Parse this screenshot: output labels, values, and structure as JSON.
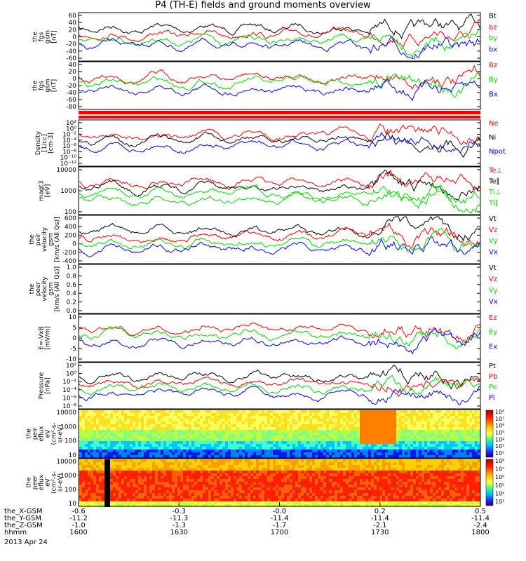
{
  "title": "P4 (TH-E) fields and ground moments overview",
  "date_label": "2013 Apr 24",
  "colors": {
    "black": "#000000",
    "red": "#ff0000",
    "green": "#00dd00",
    "blue": "#0000ff"
  },
  "chart_data": [
    {
      "type": "line",
      "ylabel": [
        "the",
        "fgs",
        "gsm",
        "[nT]"
      ],
      "yticks": [
        "60",
        "40",
        "20",
        "0",
        "-20",
        "-40",
        "-60"
      ],
      "ylim": [
        -60,
        60
      ],
      "legend": [
        {
          "label": "Bt",
          "color": "#000000"
        },
        {
          "label": "bz",
          "color": "#ff0000"
        },
        {
          "label": "by",
          "color": "#00dd00"
        },
        {
          "label": "bx",
          "color": "#0000ff"
        }
      ]
    },
    {
      "type": "line",
      "ylabel": [
        "the",
        "fgs",
        "gsm",
        "[nT]"
      ],
      "yticks": [
        "40",
        "20",
        "0",
        "-20",
        "-40",
        "-60",
        "-80"
      ],
      "ylim": [
        -90,
        45
      ],
      "legend": [
        {
          "label": "Bz",
          "color": "#ff0000"
        },
        {
          "label": "By",
          "color": "#00dd00"
        },
        {
          "label": "Bx",
          "color": "#0000ff"
        }
      ]
    },
    {
      "type": "line",
      "ylabel": [
        "Density",
        "[1/cc]",
        "[cm-3]"
      ],
      "yticks": [
        "10²",
        "10⁰",
        "10⁻²",
        "10⁻⁴",
        "10⁻⁶",
        "10⁻⁸",
        "10⁻¹⁰",
        "10⁻¹²"
      ],
      "log": true,
      "legend": [
        {
          "label": "Ne",
          "color": "#ff0000"
        },
        {
          "label": "Ni",
          "color": "#000000"
        },
        {
          "label": "Npot",
          "color": "#0000ff"
        }
      ]
    },
    {
      "type": "line",
      "ylabel": [
        "magt3",
        "[eV]"
      ],
      "yticks": [
        "10000",
        "1000",
        "100"
      ],
      "log": true,
      "legend": [
        {
          "label": "Te⊥",
          "color": "#ff0000"
        },
        {
          "label": "Te∥",
          "color": "#000000"
        },
        {
          "label": "Ti⊥",
          "color": "#00dd00"
        },
        {
          "label": "Ti∥",
          "color": "#00dd00"
        }
      ]
    },
    {
      "type": "line",
      "ylabel": [
        "the",
        "peir",
        "velocity",
        "gsm",
        "[km/s (All Qs)]"
      ],
      "yticks": [
        "600",
        "400",
        "200",
        "0",
        "-200",
        "-400"
      ],
      "ylim": [
        -450,
        620
      ],
      "legend": [
        {
          "label": "Vt",
          "color": "#000000"
        },
        {
          "label": "Vz",
          "color": "#ff0000"
        },
        {
          "label": "Vy",
          "color": "#00dd00"
        },
        {
          "label": "Vx",
          "color": "#0000ff"
        }
      ]
    },
    {
      "type": "line",
      "ylabel": [
        "the",
        "peer",
        "velocity",
        "gsm",
        "[km/s (All Qs)]"
      ],
      "yticks": [
        "1.0",
        "0.8",
        "0.6",
        "0.4",
        "0.2",
        "0.0"
      ],
      "ylim": [
        0,
        1
      ],
      "legend": [
        {
          "label": "Vt",
          "color": "#000000"
        },
        {
          "label": "Vz",
          "color": "#ff0000"
        },
        {
          "label": "Vy",
          "color": "#00dd00"
        },
        {
          "label": "Vx",
          "color": "#0000ff"
        }
      ]
    },
    {
      "type": "line",
      "ylabel": [
        "E=-VxB",
        "[mV/m]"
      ],
      "yticks": [
        "10",
        "5",
        "0",
        "-5",
        "-10"
      ],
      "ylim": [
        -10,
        10
      ],
      "legend": [
        {
          "label": "Ez",
          "color": "#ff0000"
        },
        {
          "label": "Ey",
          "color": "#00dd00"
        },
        {
          "label": "Ex",
          "color": "#0000ff"
        }
      ]
    },
    {
      "type": "line",
      "ylabel": [
        "Pressure",
        "[nPa]"
      ],
      "yticks": [
        "10²",
        "10⁰",
        "10⁻²",
        "10⁻⁴",
        "10⁻⁶",
        "10⁻⁸"
      ],
      "log": true,
      "legend": [
        {
          "label": "Pt",
          "color": "#000000"
        },
        {
          "label": "Pb",
          "color": "#ff0000"
        },
        {
          "label": "Pe",
          "color": "#00dd00"
        },
        {
          "label": "Pi",
          "color": "#0000ff"
        }
      ]
    },
    {
      "type": "heatmap",
      "ylabel": [
        "the",
        "peir",
        "eflux",
        "eV",
        "(cm²-s-",
        "sr-eV)"
      ],
      "yticks": [
        "10000",
        "1000",
        "100",
        "10"
      ],
      "log": true,
      "colorbar": [
        "10⁸",
        "10⁷",
        "10⁶",
        "10⁵",
        "10⁴",
        "10³",
        "10²"
      ]
    },
    {
      "type": "heatmap",
      "ylabel": [
        "the",
        "peer",
        "eflux",
        "eV",
        "(cm²-s-",
        "sr-eV)"
      ],
      "yticks": [
        "10000",
        "1000",
        "100",
        "10"
      ],
      "log": true,
      "colorbar": [
        "10⁸",
        "10⁷",
        "10⁶",
        "10⁵",
        "10⁴",
        "10³"
      ]
    }
  ],
  "x_axis": {
    "row_labels": [
      "the_X-GSM",
      "the_Y-GSM",
      "the_Z-GSM",
      "hhmm"
    ],
    "rows": [
      [
        "-0.6",
        "-0.3",
        "-0.0",
        "0.2",
        "0.5"
      ],
      [
        "-11.2",
        "-11.3",
        "-11.4",
        "-11.4",
        "-11.4"
      ],
      [
        "-1.0",
        "-1.3",
        "-1.7",
        "-2.1",
        "-2.4"
      ],
      [
        "1600",
        "1630",
        "1700",
        "1730",
        "1800"
      ]
    ]
  }
}
